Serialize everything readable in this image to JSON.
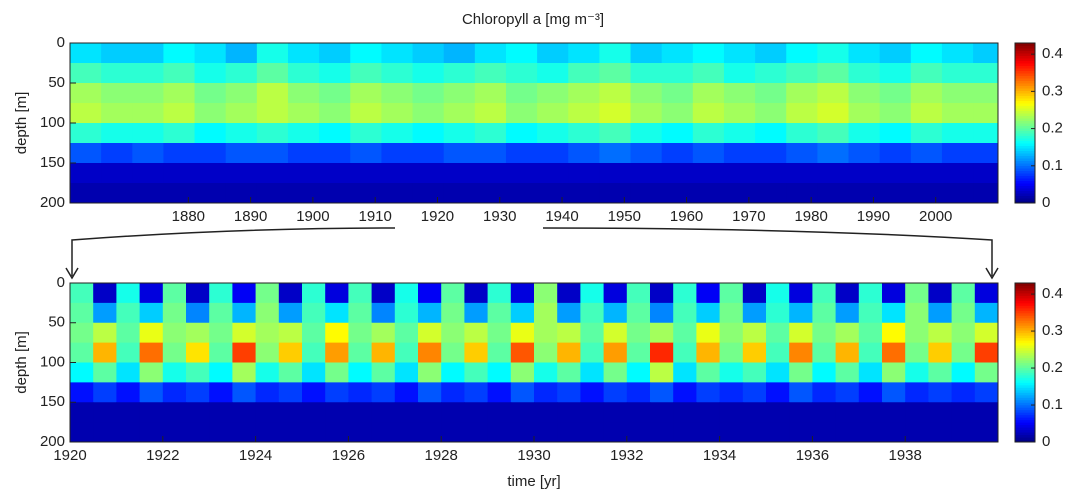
{
  "chart_data": [
    {
      "type": "heatmap",
      "title": "Chloropyll a [mg m⁻³]",
      "ylabel": "depth [m]",
      "xlim": [
        1861,
        2010
      ],
      "xticks": [
        1880,
        1890,
        1900,
        1910,
        1920,
        1930,
        1940,
        1950,
        1960,
        1970,
        1980,
        1990,
        2000
      ],
      "ylim": [
        0,
        200
      ],
      "yticks": [
        0,
        50,
        100,
        150,
        200
      ],
      "y_reversed": true,
      "colormap": "jet",
      "clim": [
        0,
        0.43
      ],
      "cticks": [
        0,
        0.1,
        0.2,
        0.3,
        0.4
      ],
      "x_edges": [
        1861,
        1866,
        1871,
        1876,
        1881,
        1886,
        1891,
        1896,
        1901,
        1906,
        1911,
        1916,
        1921,
        1926,
        1931,
        1936,
        1941,
        1946,
        1951,
        1956,
        1961,
        1966,
        1971,
        1976,
        1981,
        1986,
        1991,
        1996,
        2001,
        2006,
        2010
      ],
      "y_edges": [
        0,
        25,
        50,
        75,
        100,
        125,
        150,
        175,
        200
      ],
      "z": [
        [
          0.15,
          0.14,
          0.14,
          0.16,
          0.15,
          0.13,
          0.17,
          0.15,
          0.14,
          0.16,
          0.15,
          0.14,
          0.13,
          0.15,
          0.16,
          0.14,
          0.15,
          0.17,
          0.14,
          0.15,
          0.16,
          0.15,
          0.14,
          0.16,
          0.17,
          0.15,
          0.14,
          0.16,
          0.15,
          0.14
        ],
        [
          0.19,
          0.18,
          0.18,
          0.19,
          0.17,
          0.18,
          0.2,
          0.18,
          0.17,
          0.19,
          0.18,
          0.17,
          0.18,
          0.19,
          0.18,
          0.17,
          0.19,
          0.2,
          0.18,
          0.18,
          0.19,
          0.17,
          0.18,
          0.19,
          0.2,
          0.18,
          0.17,
          0.19,
          0.18,
          0.18
        ],
        [
          0.23,
          0.22,
          0.22,
          0.23,
          0.21,
          0.22,
          0.24,
          0.22,
          0.21,
          0.23,
          0.22,
          0.21,
          0.22,
          0.23,
          0.21,
          0.22,
          0.23,
          0.24,
          0.22,
          0.21,
          0.23,
          0.22,
          0.21,
          0.23,
          0.24,
          0.22,
          0.21,
          0.23,
          0.22,
          0.22
        ],
        [
          0.24,
          0.23,
          0.23,
          0.24,
          0.22,
          0.23,
          0.24,
          0.23,
          0.22,
          0.24,
          0.23,
          0.22,
          0.23,
          0.24,
          0.22,
          0.23,
          0.24,
          0.25,
          0.23,
          0.22,
          0.24,
          0.23,
          0.22,
          0.24,
          0.25,
          0.23,
          0.22,
          0.24,
          0.23,
          0.23
        ],
        [
          0.18,
          0.17,
          0.17,
          0.18,
          0.16,
          0.17,
          0.18,
          0.17,
          0.16,
          0.18,
          0.17,
          0.16,
          0.17,
          0.18,
          0.16,
          0.17,
          0.18,
          0.19,
          0.17,
          0.16,
          0.18,
          0.17,
          0.16,
          0.18,
          0.19,
          0.17,
          0.16,
          0.18,
          0.17,
          0.17
        ],
        [
          0.09,
          0.08,
          0.09,
          0.08,
          0.08,
          0.09,
          0.09,
          0.08,
          0.08,
          0.09,
          0.08,
          0.08,
          0.09,
          0.09,
          0.08,
          0.08,
          0.09,
          0.1,
          0.09,
          0.08,
          0.09,
          0.08,
          0.08,
          0.09,
          0.1,
          0.09,
          0.08,
          0.09,
          0.08,
          0.08
        ],
        [
          0.03,
          0.03,
          0.03,
          0.03,
          0.03,
          0.03,
          0.03,
          0.03,
          0.03,
          0.03,
          0.03,
          0.03,
          0.03,
          0.03,
          0.03,
          0.03,
          0.03,
          0.03,
          0.03,
          0.03,
          0.03,
          0.03,
          0.03,
          0.03,
          0.03,
          0.03,
          0.03,
          0.03,
          0.03,
          0.03
        ],
        [
          0.02,
          0.02,
          0.02,
          0.02,
          0.02,
          0.02,
          0.02,
          0.02,
          0.02,
          0.02,
          0.02,
          0.02,
          0.02,
          0.02,
          0.02,
          0.02,
          0.02,
          0.02,
          0.02,
          0.02,
          0.02,
          0.02,
          0.02,
          0.02,
          0.02,
          0.02,
          0.02,
          0.02,
          0.02,
          0.02
        ]
      ]
    },
    {
      "type": "heatmap",
      "xlabel": "time [yr]",
      "ylabel": "depth [m]",
      "xlim": [
        1920,
        1940
      ],
      "xticks": [
        1920,
        1922,
        1924,
        1926,
        1928,
        1930,
        1932,
        1934,
        1936,
        1938
      ],
      "ylim": [
        0,
        200
      ],
      "yticks": [
        0,
        50,
        100,
        150,
        200
      ],
      "y_reversed": true,
      "colormap": "jet",
      "clim": [
        0,
        0.43
      ],
      "cticks": [
        0,
        0.1,
        0.2,
        0.3,
        0.4
      ],
      "x_edges": [
        1920,
        1920.5,
        1921,
        1921.5,
        1922,
        1922.5,
        1923,
        1923.5,
        1924,
        1924.5,
        1925,
        1925.5,
        1926,
        1926.5,
        1927,
        1927.5,
        1928,
        1928.5,
        1929,
        1929.5,
        1930,
        1930.5,
        1931,
        1931.5,
        1932,
        1932.5,
        1933,
        1933.5,
        1934,
        1934.5,
        1935,
        1935.5,
        1936,
        1936.5,
        1937,
        1937.5,
        1938,
        1938.5,
        1939,
        1939.5,
        1940
      ],
      "y_edges": [
        0,
        25,
        50,
        75,
        100,
        125,
        150,
        175,
        200
      ],
      "z": [
        [
          0.19,
          0.03,
          0.17,
          0.04,
          0.2,
          0.03,
          0.18,
          0.05,
          0.21,
          0.03,
          0.18,
          0.04,
          0.19,
          0.03,
          0.17,
          0.05,
          0.2,
          0.03,
          0.18,
          0.04,
          0.22,
          0.03,
          0.17,
          0.04,
          0.19,
          0.03,
          0.18,
          0.05,
          0.2,
          0.03,
          0.17,
          0.04,
          0.19,
          0.03,
          0.18,
          0.04,
          0.21,
          0.03,
          0.2,
          0.04
        ],
        [
          0.2,
          0.12,
          0.19,
          0.14,
          0.21,
          0.11,
          0.2,
          0.13,
          0.22,
          0.12,
          0.19,
          0.15,
          0.2,
          0.11,
          0.18,
          0.13,
          0.21,
          0.12,
          0.2,
          0.14,
          0.23,
          0.12,
          0.19,
          0.13,
          0.2,
          0.11,
          0.19,
          0.14,
          0.21,
          0.12,
          0.18,
          0.13,
          0.2,
          0.12,
          0.19,
          0.15,
          0.22,
          0.12,
          0.21,
          0.13
        ],
        [
          0.21,
          0.24,
          0.2,
          0.26,
          0.22,
          0.23,
          0.21,
          0.25,
          0.23,
          0.24,
          0.2,
          0.27,
          0.21,
          0.23,
          0.2,
          0.25,
          0.22,
          0.24,
          0.21,
          0.26,
          0.23,
          0.24,
          0.2,
          0.25,
          0.21,
          0.23,
          0.2,
          0.26,
          0.22,
          0.24,
          0.2,
          0.25,
          0.21,
          0.23,
          0.2,
          0.27,
          0.22,
          0.24,
          0.22,
          0.25
        ],
        [
          0.2,
          0.3,
          0.19,
          0.33,
          0.21,
          0.28,
          0.2,
          0.35,
          0.22,
          0.29,
          0.19,
          0.31,
          0.2,
          0.3,
          0.19,
          0.32,
          0.21,
          0.29,
          0.2,
          0.34,
          0.22,
          0.3,
          0.19,
          0.31,
          0.2,
          0.36,
          0.19,
          0.3,
          0.21,
          0.29,
          0.19,
          0.32,
          0.2,
          0.3,
          0.19,
          0.33,
          0.21,
          0.29,
          0.21,
          0.35
        ],
        [
          0.16,
          0.2,
          0.15,
          0.22,
          0.17,
          0.19,
          0.16,
          0.23,
          0.17,
          0.2,
          0.15,
          0.21,
          0.16,
          0.2,
          0.15,
          0.22,
          0.16,
          0.19,
          0.16,
          0.22,
          0.17,
          0.2,
          0.15,
          0.21,
          0.16,
          0.24,
          0.15,
          0.2,
          0.17,
          0.19,
          0.15,
          0.21,
          0.16,
          0.2,
          0.15,
          0.22,
          0.17,
          0.2,
          0.16,
          0.21
        ],
        [
          0.06,
          0.08,
          0.06,
          0.09,
          0.07,
          0.08,
          0.06,
          0.09,
          0.07,
          0.08,
          0.06,
          0.08,
          0.07,
          0.08,
          0.06,
          0.09,
          0.07,
          0.08,
          0.06,
          0.09,
          0.07,
          0.08,
          0.06,
          0.08,
          0.07,
          0.09,
          0.06,
          0.08,
          0.07,
          0.08,
          0.06,
          0.09,
          0.07,
          0.08,
          0.06,
          0.09,
          0.07,
          0.08,
          0.07,
          0.08
        ],
        [
          0.02,
          0.02,
          0.02,
          0.02,
          0.02,
          0.02,
          0.02,
          0.02,
          0.02,
          0.02,
          0.02,
          0.02,
          0.02,
          0.02,
          0.02,
          0.02,
          0.02,
          0.02,
          0.02,
          0.02,
          0.02,
          0.02,
          0.02,
          0.02,
          0.02,
          0.02,
          0.02,
          0.02,
          0.02,
          0.02,
          0.02,
          0.02,
          0.02,
          0.02,
          0.02,
          0.02,
          0.02,
          0.02,
          0.02,
          0.02
        ],
        [
          0.02,
          0.02,
          0.02,
          0.02,
          0.02,
          0.02,
          0.02,
          0.02,
          0.02,
          0.02,
          0.02,
          0.02,
          0.02,
          0.02,
          0.02,
          0.02,
          0.02,
          0.02,
          0.02,
          0.02,
          0.02,
          0.02,
          0.02,
          0.02,
          0.02,
          0.02,
          0.02,
          0.02,
          0.02,
          0.02,
          0.02,
          0.02,
          0.02,
          0.02,
          0.02,
          0.02,
          0.02,
          0.02,
          0.02,
          0.02
        ]
      ]
    }
  ]
}
